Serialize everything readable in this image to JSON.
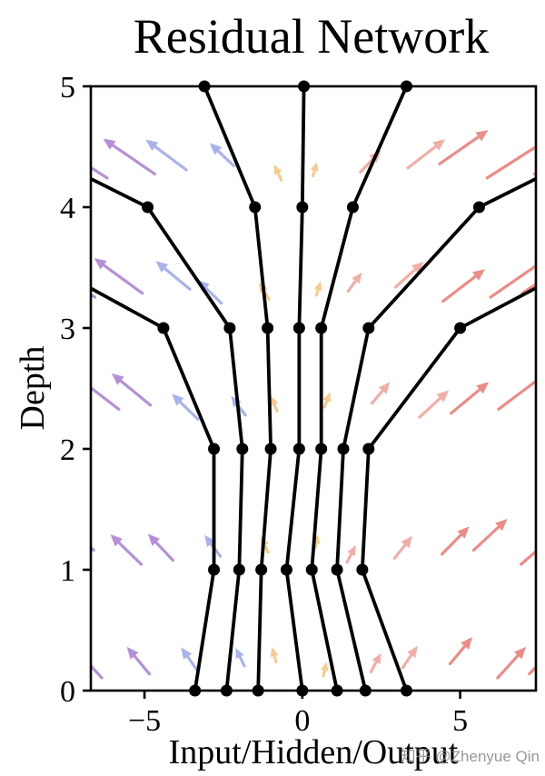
{
  "watermark": "知乎 @Zhenyue Qin",
  "chart_data": {
    "type": "line",
    "title": "Residual Network",
    "xlabel": "Input/Hidden/Output",
    "ylabel": "Depth",
    "xlim": [
      -6.7,
      7.4
    ],
    "ylim": [
      0,
      5
    ],
    "grid": false,
    "legend": "none",
    "xticks": {
      "values": [
        -5,
        0,
        5
      ],
      "labels": [
        "−5",
        "0",
        "5"
      ]
    },
    "yticks": {
      "values": [
        0,
        1,
        2,
        3,
        4,
        5
      ],
      "labels": [
        "0",
        "1",
        "2",
        "3",
        "4",
        "5"
      ]
    },
    "line_color": "#000000",
    "marker": "filled-circle",
    "marker_color": "#000000",
    "trajectories": [
      {
        "name": "trajectory-1",
        "points": [
          [
            -3.4,
            0
          ],
          [
            -2.8,
            1
          ],
          [
            -2.8,
            2
          ],
          [
            -4.4,
            3
          ],
          [
            -7.2,
            3.4
          ]
        ]
      },
      {
        "name": "trajectory-2",
        "points": [
          [
            -2.4,
            0
          ],
          [
            -2.0,
            1
          ],
          [
            -1.9,
            2
          ],
          [
            -2.3,
            3
          ],
          [
            -4.9,
            4
          ],
          [
            -7.2,
            4.3
          ]
        ]
      },
      {
        "name": "trajectory-3",
        "points": [
          [
            -1.4,
            0
          ],
          [
            -1.3,
            1
          ],
          [
            -1.0,
            2
          ],
          [
            -1.1,
            3
          ],
          [
            -1.5,
            4
          ],
          [
            -3.1,
            5
          ]
        ]
      },
      {
        "name": "trajectory-4",
        "points": [
          [
            0.0,
            0
          ],
          [
            -0.5,
            1
          ],
          [
            -0.1,
            2
          ],
          [
            -0.1,
            3
          ],
          [
            0.0,
            4
          ],
          [
            0.05,
            5
          ]
        ]
      },
      {
        "name": "trajectory-5",
        "points": [
          [
            1.1,
            0
          ],
          [
            0.3,
            1
          ],
          [
            0.6,
            2
          ],
          [
            0.6,
            3
          ],
          [
            1.6,
            4
          ],
          [
            3.3,
            5
          ]
        ]
      },
      {
        "name": "trajectory-6",
        "points": [
          [
            2.0,
            0
          ],
          [
            1.1,
            1
          ],
          [
            1.3,
            2
          ],
          [
            2.1,
            3
          ],
          [
            5.6,
            4
          ],
          [
            7.9,
            4.3
          ]
        ]
      },
      {
        "name": "trajectory-7",
        "points": [
          [
            3.3,
            0
          ],
          [
            1.9,
            1
          ],
          [
            2.1,
            2
          ],
          [
            5.0,
            3
          ],
          [
            7.9,
            3.4
          ]
        ]
      }
    ],
    "vector_field": {
      "description": "background quiver; arrows point outward from x=0 and slightly upward, magnitude grows with |x| and depth",
      "row_depths": [
        0.18,
        1.12,
        2.32,
        3.28,
        4.3
      ],
      "x_start": -6.4,
      "x_step": 1.35,
      "x_count": 11,
      "row_x_offsets": [
        0.3,
        -0.15,
        0.45,
        0.0,
        0.2
      ],
      "dx_coef": 0.14,
      "dx_depth_coef": 0.35,
      "dy_base": 0.1,
      "dy_abs_coef": 0.025,
      "dy_depth_coef": 0.15,
      "opacity": 0.82,
      "color_bins": [
        {
          "x_max": -4.0,
          "color": "#a678cf"
        },
        {
          "x_max": -1.1,
          "color": "#96a2e8"
        },
        {
          "x_max": 1.1,
          "color": "#f5c174"
        },
        {
          "x_max": 4.0,
          "color": "#ef9d96"
        },
        {
          "x_max": 99,
          "color": "#e8736d"
        }
      ]
    }
  }
}
